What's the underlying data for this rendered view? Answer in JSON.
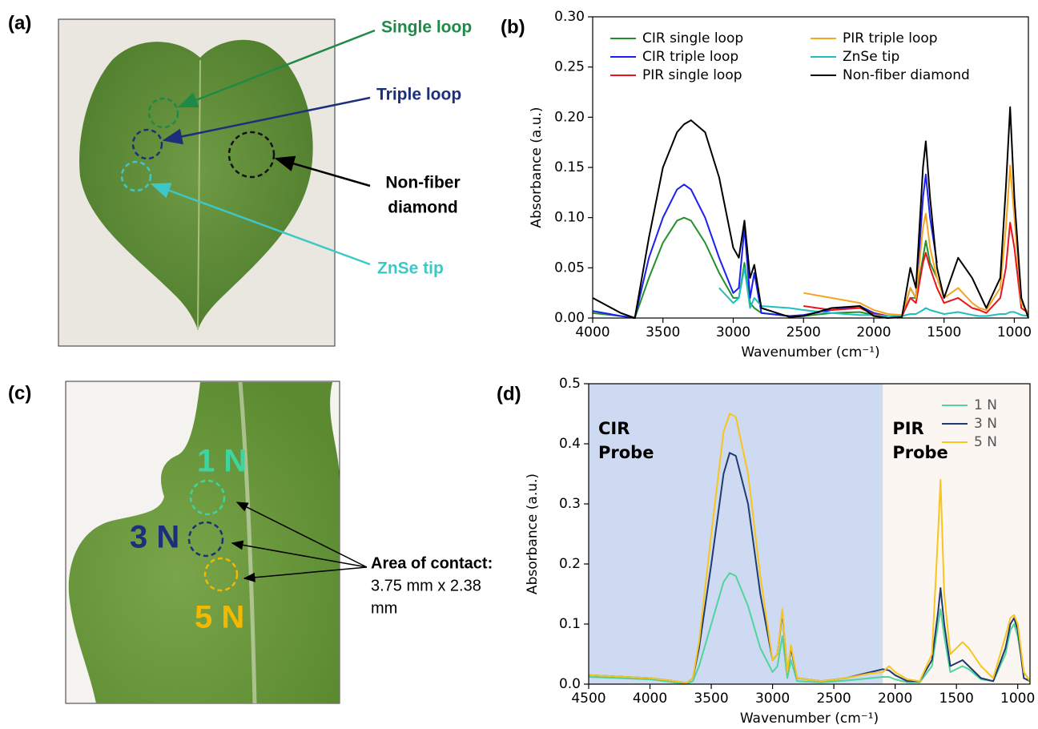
{
  "photo_a": {
    "label": "(a)",
    "callouts": [
      [
        "Single loop"
      ],
      [
        "Triple loop"
      ],
      [
        "Non-fiber",
        "diamond"
      ],
      [
        "ZnSe tip"
      ]
    ]
  },
  "photo_c": {
    "label": "(c)",
    "forces": [
      "1 N",
      "3 N",
      "5 N"
    ],
    "contact": [
      "Area of contact:",
      "3.75 mm x 2.38",
      "mm"
    ]
  },
  "chart_data": [
    {
      "type": "line",
      "label": "(b)",
      "xlabel": "Wavenumber (cm⁻¹)",
      "ylabel": "Absorbance (a.u.)",
      "xlim": [
        4000,
        900
      ],
      "ylim": [
        0,
        0.3
      ],
      "xticks": [
        4000,
        3500,
        3000,
        2500,
        2000,
        1500,
        1000
      ],
      "yticks": [
        {
          "value": 0,
          "label": "0.00"
        },
        {
          "value": 0.05,
          "label": "0.05"
        },
        {
          "value": 0.1,
          "label": "0.10"
        },
        {
          "value": 0.15,
          "label": "0.15"
        },
        {
          "value": 0.2,
          "label": "0.20"
        },
        {
          "value": 0.25,
          "label": "0.25"
        },
        {
          "value": 0.3,
          "label": "0.30"
        }
      ],
      "legend": "upper center",
      "legend_columns": 2,
      "x": [
        4000,
        3800,
        3700,
        3600,
        3500,
        3400,
        3350,
        3300,
        3200,
        3100,
        3000,
        2960,
        2920,
        2880,
        2850,
        2800,
        2600,
        2500,
        2300,
        2100,
        2000,
        1900,
        1800,
        1740,
        1700,
        1650,
        1630,
        1600,
        1550,
        1500,
        1400,
        1300,
        1250,
        1200,
        1100,
        1060,
        1030,
        1000,
        950,
        900
      ],
      "series": [
        {
          "name": "CIR single loop",
          "color": "#23912b",
          "values": [
            0.005,
            0.002,
            0,
            0.04,
            0.075,
            0.097,
            0.1,
            0.097,
            0.075,
            0.045,
            0.02,
            0.02,
            0.055,
            0.015,
            0.01,
            0.005,
            0.002,
            0.002,
            0.005,
            0.006,
            0.003,
            0.002,
            0.002,
            0.02,
            0.02,
            0.06,
            0.077,
            0.055,
            0.04,
            null,
            null,
            null,
            null,
            null,
            null,
            null,
            null,
            null,
            null,
            null
          ]
        },
        {
          "name": "CIR triple loop",
          "color": "#1d1ff0",
          "values": [
            0.007,
            0.002,
            0,
            0.06,
            0.1,
            0.128,
            0.133,
            0.128,
            0.1,
            0.06,
            0.025,
            0.03,
            0.09,
            0.02,
            0.045,
            0.005,
            0.002,
            0.003,
            0.008,
            0.012,
            0.005,
            0.002,
            0.002,
            0.03,
            0.02,
            0.12,
            0.143,
            0.1,
            0.055,
            null,
            null,
            null,
            null,
            null,
            null,
            null,
            null,
            null,
            null,
            null
          ]
        },
        {
          "name": "PIR single loop",
          "color": "#e8161b",
          "values": [
            null,
            null,
            null,
            null,
            null,
            null,
            null,
            null,
            null,
            null,
            null,
            null,
            null,
            null,
            null,
            null,
            null,
            0.012,
            0.008,
            0.01,
            0.004,
            0.002,
            0.002,
            0.02,
            0.015,
            0.055,
            0.065,
            0.05,
            0.03,
            0.015,
            0.02,
            0.01,
            0.008,
            0.005,
            0.02,
            0.05,
            0.095,
            0.07,
            0.01,
            0.005
          ]
        },
        {
          "name": "PIR triple loop",
          "color": "#f5a41d",
          "values": [
            null,
            null,
            null,
            null,
            null,
            null,
            null,
            null,
            null,
            null,
            null,
            null,
            null,
            null,
            null,
            null,
            null,
            0.025,
            0.02,
            0.015,
            0.008,
            0.004,
            0.003,
            0.03,
            0.02,
            0.09,
            0.104,
            0.07,
            0.04,
            0.02,
            0.03,
            0.015,
            0.01,
            0.008,
            0.03,
            0.09,
            0.152,
            0.1,
            0.015,
            0.005
          ]
        },
        {
          "name": "ZnSe tip",
          "color": "#1fbfbf",
          "values": [
            null,
            null,
            null,
            null,
            null,
            null,
            null,
            null,
            null,
            0.03,
            0.015,
            0.02,
            0.05,
            0.01,
            0.02,
            0.012,
            0.01,
            0.008,
            0.005,
            0.003,
            0.003,
            0.002,
            0.002,
            0.004,
            0.004,
            0.008,
            0.01,
            0.008,
            0.006,
            0.004,
            0.006,
            0.003,
            0.002,
            0.002,
            0.004,
            0.004,
            0.006,
            0.006,
            0.003,
            0.002
          ]
        },
        {
          "name": "Non-fiber diamond",
          "color": "#000000",
          "values": [
            0.02,
            0.005,
            0,
            0.08,
            0.15,
            0.185,
            0.193,
            0.197,
            0.185,
            0.14,
            0.07,
            0.06,
            0.097,
            0.04,
            0.053,
            0.01,
            0.001,
            0.002,
            0.01,
            0.012,
            0.002,
            0,
            0.001,
            0.05,
            0.03,
            0.15,
            0.176,
            0.12,
            0.05,
            0.02,
            0.06,
            0.04,
            0.025,
            0.01,
            0.04,
            0.13,
            0.21,
            0.12,
            0.02,
            0
          ]
        }
      ]
    },
    {
      "type": "line",
      "label": "(d)",
      "xlabel": "Wavenumber (cm⁻¹)",
      "ylabel": "Absorbance (a.u.)",
      "xlim": [
        4500,
        900
      ],
      "ylim": [
        0,
        0.5
      ],
      "xticks": [
        4500,
        4000,
        3500,
        3000,
        2500,
        2000,
        1500,
        1000
      ],
      "yticks": [
        {
          "value": 0,
          "label": "0.0"
        },
        0.1,
        0.2,
        0.3,
        0.4,
        0.5
      ],
      "legend": "upper right",
      "legend_columns": 1,
      "regions": [
        {
          "label": [
            "CIR",
            "Probe"
          ],
          "from": 4500,
          "to": 2100,
          "color": "#cddaf1"
        },
        {
          "label": [
            "PIR",
            "Probe"
          ],
          "from": 2100,
          "to": 900,
          "color": "#fbf6f2"
        }
      ],
      "x": [
        4500,
        4000,
        3800,
        3700,
        3650,
        3600,
        3500,
        3400,
        3350,
        3300,
        3200,
        3100,
        3000,
        2960,
        2920,
        2880,
        2850,
        2800,
        2600,
        2400,
        2200,
        2100,
        2050,
        2000,
        1900,
        1800,
        1700,
        1650,
        1630,
        1600,
        1550,
        1450,
        1400,
        1300,
        1200,
        1100,
        1060,
        1030,
        1000,
        950,
        900
      ],
      "series": [
        {
          "name": "1 N",
          "color": "#4fd59c",
          "values": [
            0.012,
            0.008,
            0.003,
            0.001,
            0.005,
            0.03,
            0.1,
            0.17,
            0.185,
            0.18,
            0.13,
            0.06,
            0.02,
            0.03,
            0.08,
            0.01,
            0.04,
            0.005,
            0.003,
            0.006,
            0.01,
            0.012,
            0.012,
            0.008,
            0.003,
            0.003,
            0.03,
            0.1,
            0.125,
            0.08,
            0.02,
            0.03,
            0.025,
            0.008,
            0.005,
            0.05,
            0.09,
            0.1,
            0.08,
            0.02,
            0.005
          ]
        },
        {
          "name": "3 N",
          "color": "#1f3b70",
          "values": [
            0.015,
            0.01,
            0.005,
            0.002,
            0.01,
            0.06,
            0.2,
            0.35,
            0.385,
            0.38,
            0.3,
            0.15,
            0.04,
            0.05,
            0.12,
            0.02,
            0.06,
            0.01,
            0.005,
            0.01,
            0.02,
            0.025,
            0.023,
            0.015,
            0.005,
            0.005,
            0.04,
            0.12,
            0.16,
            0.1,
            0.03,
            0.04,
            0.03,
            0.01,
            0.005,
            0.06,
            0.1,
            0.11,
            0.09,
            0.01,
            0.005
          ]
        },
        {
          "name": "5 N",
          "color": "#f7c51e",
          "values": [
            0.015,
            0.01,
            0.005,
            0.002,
            0.01,
            0.07,
            0.25,
            0.42,
            0.45,
            0.445,
            0.35,
            0.18,
            0.04,
            0.05,
            0.125,
            0.02,
            0.065,
            0.01,
            0.005,
            0.01,
            0.018,
            0.02,
            0.03,
            0.02,
            0.008,
            0.005,
            0.05,
            0.25,
            0.34,
            0.15,
            0.05,
            0.07,
            0.06,
            0.03,
            0.01,
            0.08,
            0.11,
            0.115,
            0.1,
            0.02,
            0.005
          ]
        }
      ]
    }
  ]
}
